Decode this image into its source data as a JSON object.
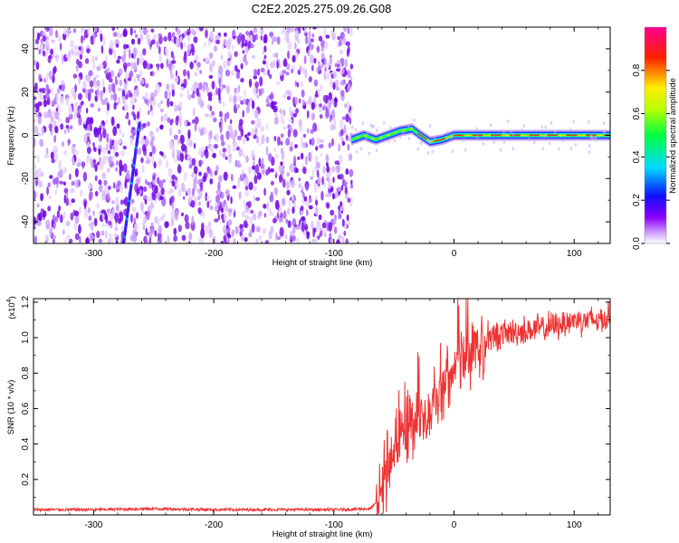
{
  "title": "C2E2.2025.275.09.26.G08",
  "chart_data": [
    {
      "type": "heatmap",
      "title": "C2E2.2025.275.09.26.G08",
      "xlabel": "Height of straight line (km)",
      "ylabel": "Frequency (Hz)",
      "xlim": [
        -350,
        130
      ],
      "ylim": [
        -50,
        50
      ],
      "xticks": [
        -300,
        -200,
        -100,
        0,
        100
      ],
      "yticks": [
        -40,
        -20,
        0,
        20,
        40
      ],
      "colorbar": {
        "label": "Normalized spectral amplitude",
        "range": [
          0.0,
          1.0
        ],
        "ticks": [
          "0.0",
          "0.2",
          "0.4",
          "0.6",
          "0.8"
        ]
      },
      "features": {
        "noise_region_x": [
          -350,
          -85
        ],
        "signal_trace": {
          "x": [
            -85,
            -75,
            -65,
            -55,
            -45,
            -35,
            -28,
            -20,
            -10,
            0,
            20,
            50,
            80,
            100,
            130
          ],
          "freq": [
            -2,
            0,
            -2,
            0,
            2,
            3,
            0,
            -3,
            -2,
            0,
            0,
            0,
            0,
            0,
            0
          ]
        },
        "diagonal_streak": {
          "x": [
            -275,
            -262
          ],
          "freq": [
            -50,
            5
          ]
        }
      }
    },
    {
      "type": "line",
      "xlabel": "Height of straight line (km)",
      "ylabel": "SNR (10 * v/v)",
      "y_scale_label": "(x10",
      "y_scale_exponent": "4",
      "y_scale_suffix": ")",
      "xlim": [
        -350,
        130
      ],
      "ylim": [
        0.0,
        1.22
      ],
      "xticks": [
        -300,
        -200,
        -100,
        0,
        100
      ],
      "yticks": [
        "0.2",
        "0.4",
        "0.6",
        "0.8",
        "1.0",
        "1.2"
      ],
      "ytick_values": [
        0.2,
        0.4,
        0.6,
        0.8,
        1.0,
        1.2
      ],
      "series": [
        {
          "name": "SNR",
          "color": "#ee3333",
          "x": [
            -350,
            -300,
            -250,
            -200,
            -150,
            -100,
            -70,
            -62,
            -55,
            -48,
            -42,
            -35,
            -28,
            -20,
            -12,
            -5,
            0,
            10,
            20,
            30,
            40,
            60,
            80,
            100,
            120,
            130
          ],
          "values": [
            0.03,
            0.03,
            0.035,
            0.03,
            0.03,
            0.03,
            0.035,
            0.08,
            0.3,
            0.4,
            0.45,
            0.5,
            0.55,
            0.6,
            0.7,
            0.78,
            0.83,
            0.9,
            0.95,
            1.0,
            1.02,
            1.04,
            1.06,
            1.1,
            1.1,
            1.12
          ]
        }
      ]
    }
  ]
}
